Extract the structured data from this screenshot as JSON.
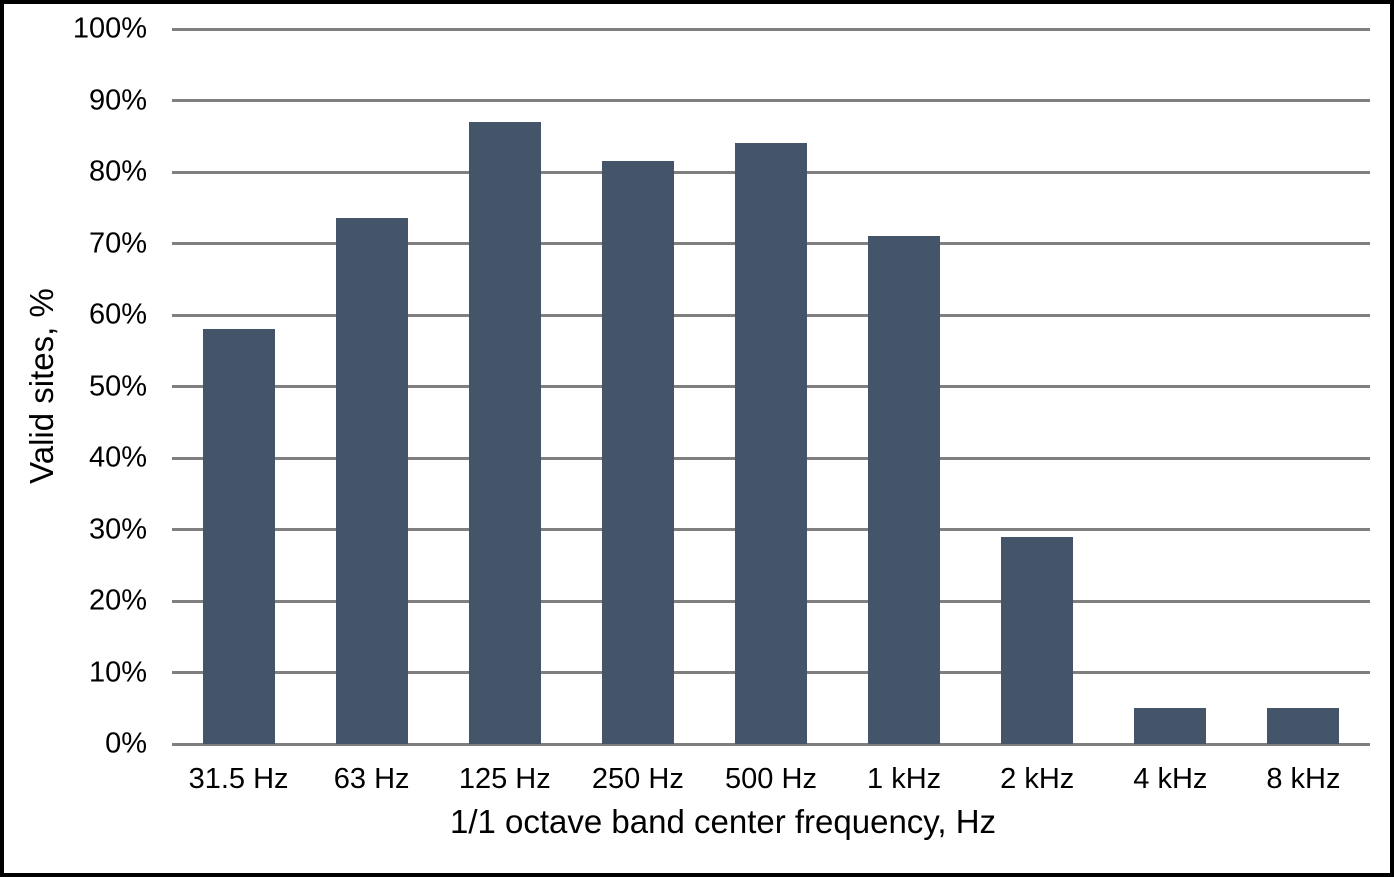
{
  "chart_data": {
    "type": "bar",
    "categories": [
      "31.5 Hz",
      "63 Hz",
      "125 Hz",
      "250 Hz",
      "500 Hz",
      "1 kHz",
      "2 kHz",
      "4 kHz",
      "8 kHz"
    ],
    "values": [
      58,
      73.5,
      87,
      81.5,
      84,
      71,
      29,
      5,
      5
    ],
    "xlabel": "1/1 octave band center frequency, Hz",
    "ylabel": "Valid sites, %",
    "ylim": [
      0,
      100
    ],
    "y_tick_step": 10,
    "y_tick_labels": [
      "0%",
      "10%",
      "20%",
      "30%",
      "40%",
      "50%",
      "60%",
      "70%",
      "80%",
      "90%",
      "100%"
    ],
    "grid": "horizontal",
    "legend": "none",
    "colors": {
      "bar": "#455569",
      "gridline": "#7F7F7F",
      "axis_line": "#7F7F7F",
      "text": "#000000",
      "frame_border": "#000000",
      "background": "#FFFFFF"
    }
  }
}
